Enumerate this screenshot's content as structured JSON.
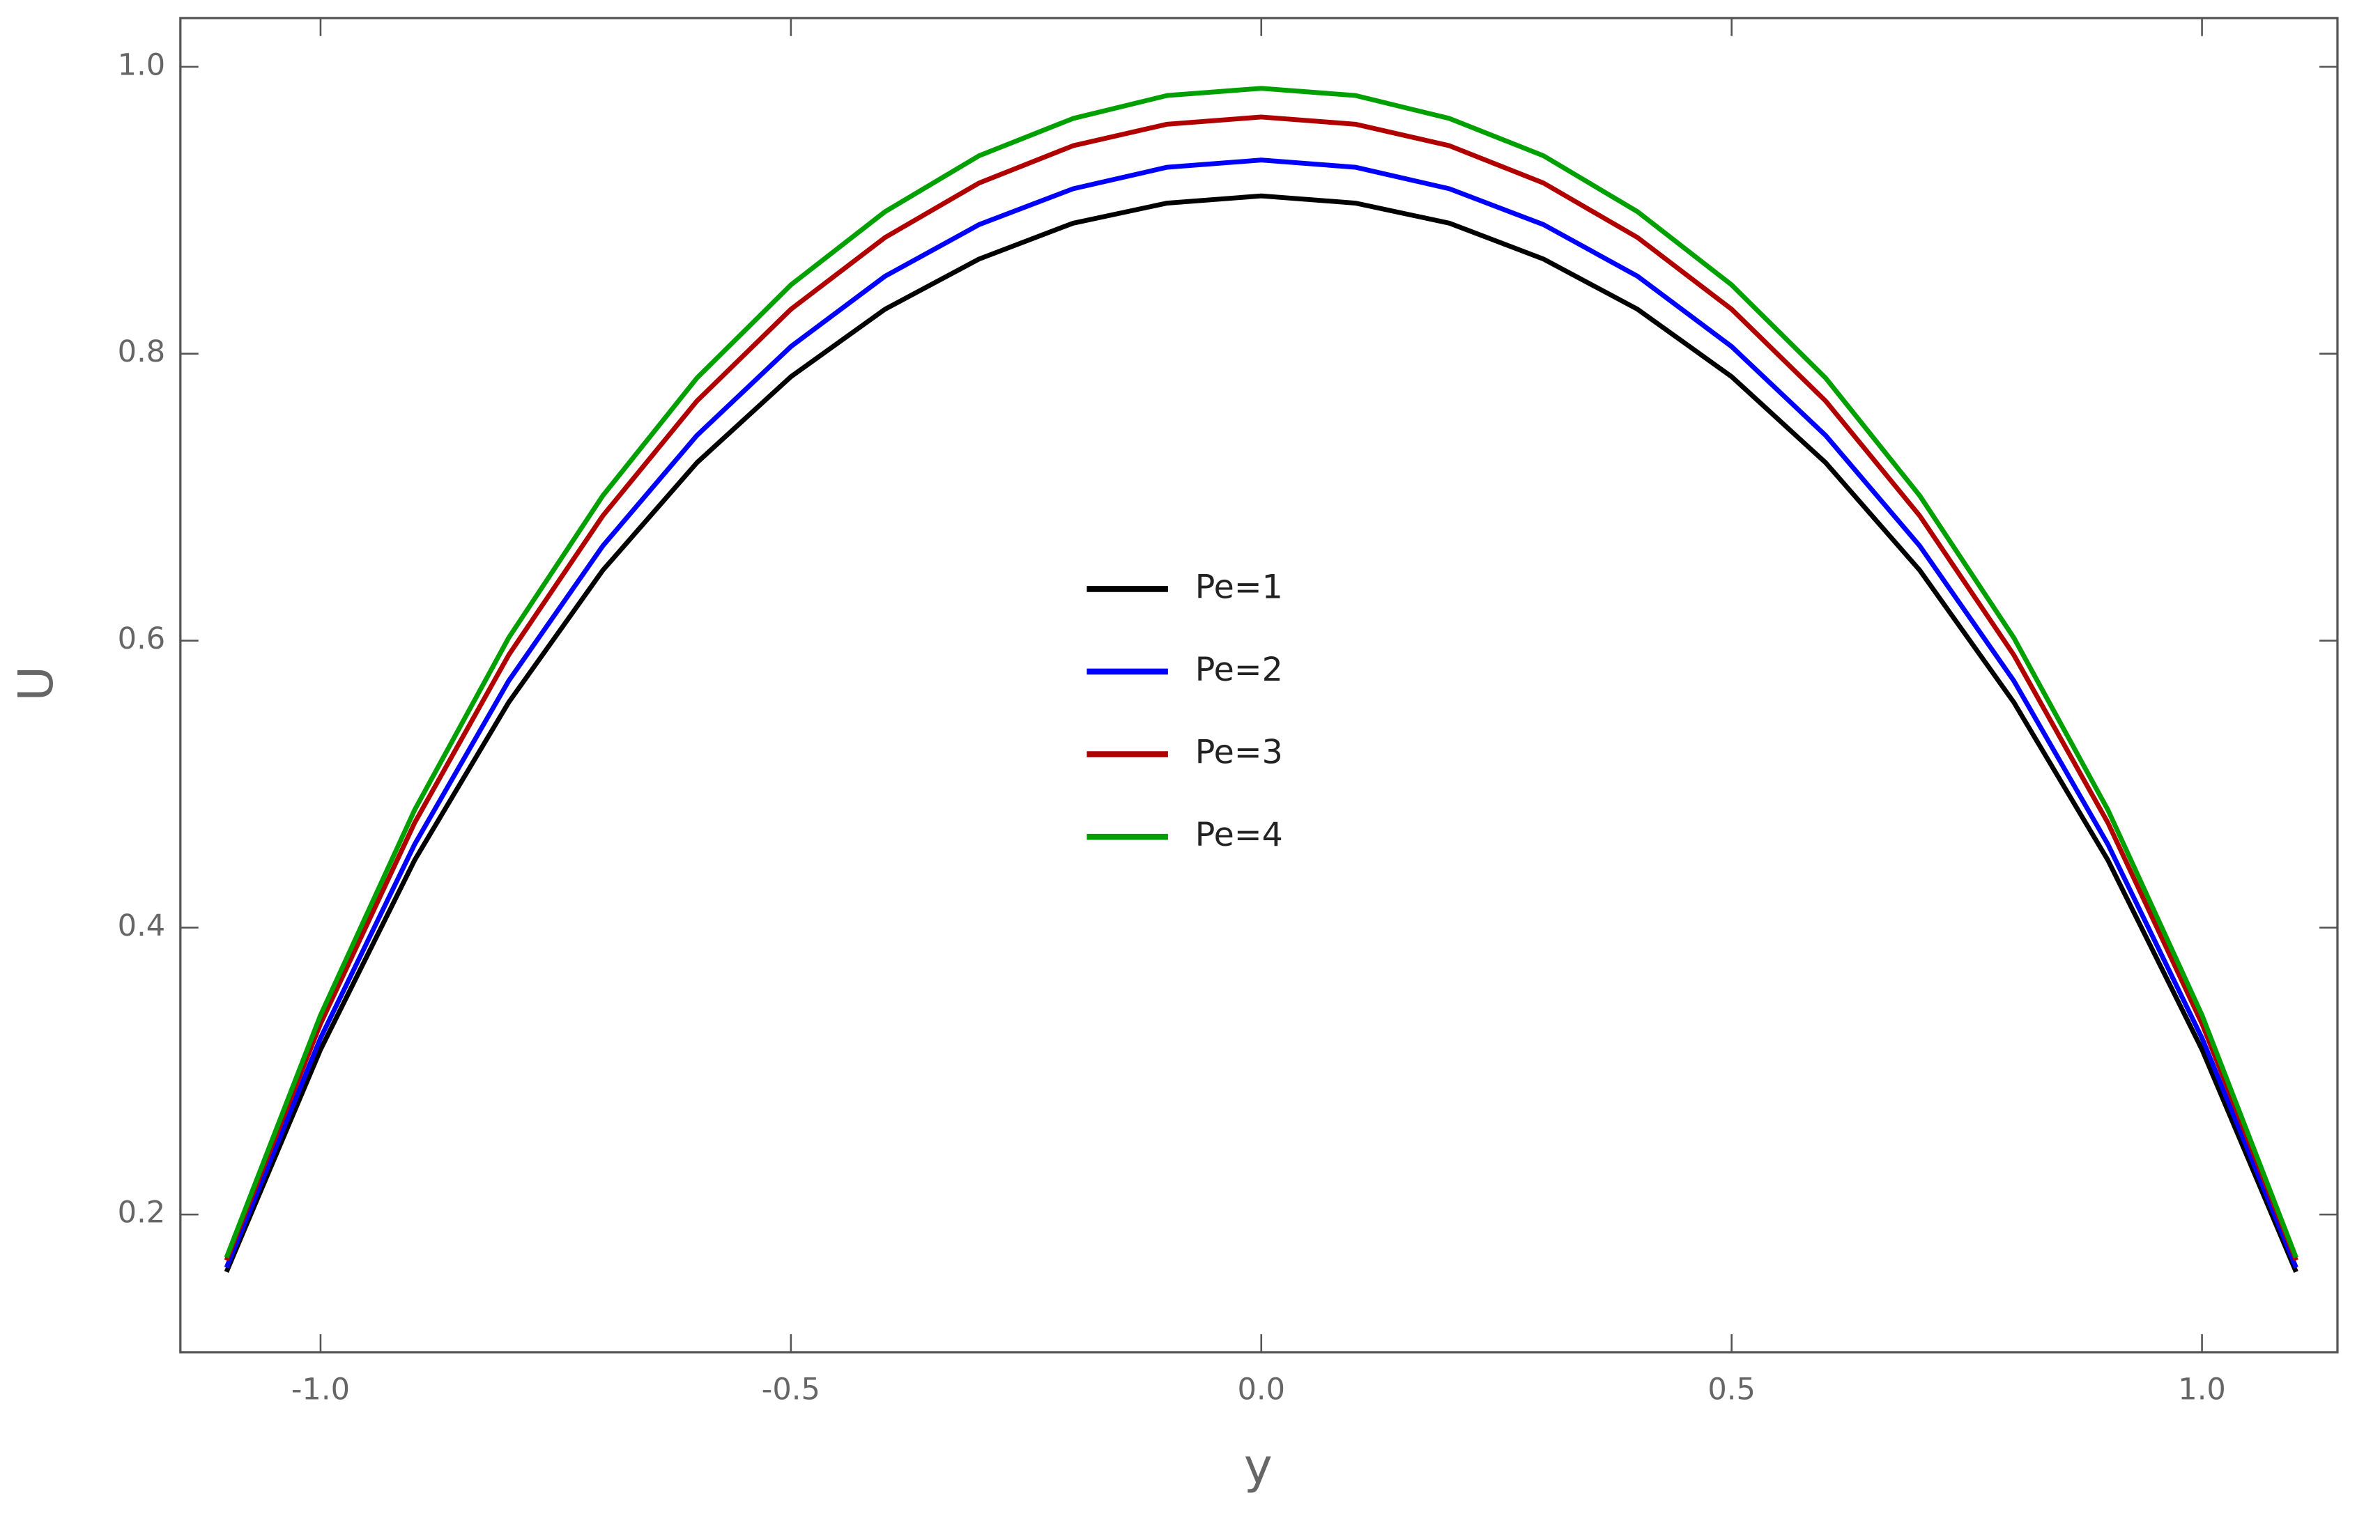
{
  "chart_data": {
    "type": "line",
    "x_label": "y",
    "y_label": "U",
    "x": [
      -1.1,
      -1.0,
      -0.9,
      -0.8,
      -0.7,
      -0.6,
      -0.5,
      -0.4,
      -0.3,
      -0.2,
      -0.1,
      0.0,
      0.1,
      0.2,
      0.3,
      0.4,
      0.5,
      0.6,
      0.7,
      0.8,
      0.9,
      1.0,
      1.1
    ],
    "series": [
      {
        "name": "Pe=1",
        "color": "#000000",
        "values": [
          0.16,
          0.315,
          0.447,
          0.557,
          0.649,
          0.724,
          0.784,
          0.831,
          0.866,
          0.891,
          0.905,
          0.91,
          0.905,
          0.891,
          0.866,
          0.831,
          0.784,
          0.724,
          0.649,
          0.557,
          0.447,
          0.315,
          0.16
        ]
      },
      {
        "name": "Pe=2",
        "color": "#0000ff",
        "values": [
          0.163,
          0.323,
          0.458,
          0.572,
          0.666,
          0.743,
          0.805,
          0.854,
          0.89,
          0.915,
          0.93,
          0.935,
          0.93,
          0.915,
          0.89,
          0.854,
          0.805,
          0.743,
          0.666,
          0.572,
          0.458,
          0.323,
          0.163
        ]
      },
      {
        "name": "Pe=3",
        "color": "#b00000",
        "values": [
          0.168,
          0.333,
          0.473,
          0.59,
          0.687,
          0.767,
          0.831,
          0.881,
          0.919,
          0.945,
          0.96,
          0.965,
          0.96,
          0.945,
          0.919,
          0.881,
          0.831,
          0.767,
          0.687,
          0.59,
          0.473,
          0.333,
          0.168
        ]
      },
      {
        "name": "Pe=4",
        "color": "#00a000",
        "values": [
          0.17,
          0.339,
          0.482,
          0.602,
          0.701,
          0.783,
          0.848,
          0.899,
          0.938,
          0.964,
          0.98,
          0.985,
          0.98,
          0.964,
          0.938,
          0.899,
          0.848,
          0.783,
          0.701,
          0.602,
          0.482,
          0.339,
          0.17
        ]
      }
    ],
    "xlim": [
      -1.149,
      1.144
    ],
    "ylim": [
      0.104,
      1.034
    ],
    "xticks": [
      {
        "value": -1.0,
        "label": "-1.0"
      },
      -0.5,
      {
        "value": 0.0,
        "label": "0.0"
      },
      0.5,
      {
        "value": 1.0,
        "label": "1.0"
      }
    ],
    "yticks": [
      0.2,
      0.4,
      0.6,
      0.8,
      {
        "value": 1.0,
        "label": "1.0"
      }
    ],
    "grid": false,
    "legend": "center"
  }
}
